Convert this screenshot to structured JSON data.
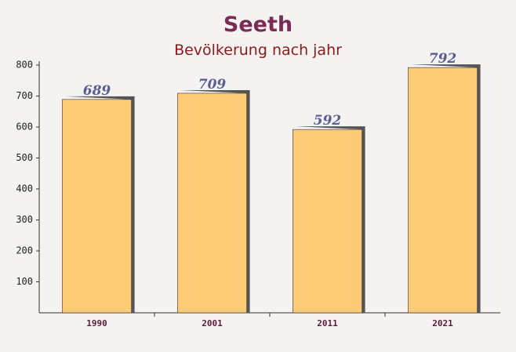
{
  "chart_data": {
    "type": "bar",
    "title": "Seeth",
    "subtitle": "Bevölkerung nach jahr",
    "categories": [
      "1990",
      "2001",
      "2011",
      "2021"
    ],
    "values": [
      689,
      709,
      592,
      792
    ],
    "color": "#fdc76a",
    "ylim": [
      0,
      800
    ],
    "yticks": [
      100,
      200,
      300,
      400,
      500,
      600,
      700,
      800
    ]
  }
}
